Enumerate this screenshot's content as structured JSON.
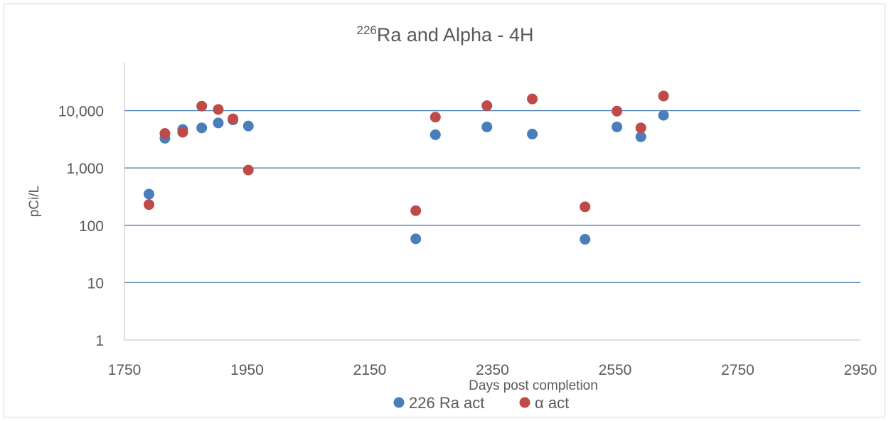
{
  "chart_data": {
    "type": "scatter",
    "title": {
      "superscript": "226",
      "main": "Ra and Alpha - 4H"
    },
    "xlabel": "Days post completion",
    "ylabel": "pCi/L",
    "xlim": [
      1750,
      2950
    ],
    "ylim": [
      1,
      100000
    ],
    "yscale": "log",
    "xticks": [
      1750,
      1950,
      2150,
      2350,
      2550,
      2750,
      2950
    ],
    "xtick_labels": [
      "1750",
      "1950",
      "2150",
      "2350",
      "2550",
      "2750",
      "2950"
    ],
    "yticks": [
      1,
      10,
      100,
      1000,
      10000
    ],
    "ytick_labels": [
      "1",
      "10",
      "100",
      "1,000",
      "10,000"
    ],
    "grid": "horizontal",
    "legend_position": "bottom",
    "series": [
      {
        "name": "226 Ra act",
        "color": "#4a7ebb",
        "points": [
          [
            1790,
            350
          ],
          [
            1816,
            3300
          ],
          [
            1845,
            4700
          ],
          [
            1876,
            5000
          ],
          [
            1903,
            6100
          ],
          [
            1927,
            6900
          ],
          [
            1952,
            5400
          ],
          [
            2225,
            58
          ],
          [
            2257,
            3800
          ],
          [
            2341,
            5200
          ],
          [
            2415,
            3900
          ],
          [
            2501,
            57
          ],
          [
            2553,
            5200
          ],
          [
            2592,
            3500
          ],
          [
            2629,
            8300
          ]
        ]
      },
      {
        "name": "α act",
        "color": "#be4b48",
        "points": [
          [
            1790,
            230
          ],
          [
            1816,
            4000
          ],
          [
            1845,
            4200
          ],
          [
            1876,
            12000
          ],
          [
            1903,
            10500
          ],
          [
            1927,
            7200
          ],
          [
            1952,
            920
          ],
          [
            2225,
            180
          ],
          [
            2257,
            7700
          ],
          [
            2341,
            12200
          ],
          [
            2415,
            16000
          ],
          [
            2501,
            210
          ],
          [
            2553,
            9800
          ],
          [
            2592,
            5000
          ],
          [
            2629,
            18000
          ]
        ]
      }
    ]
  }
}
